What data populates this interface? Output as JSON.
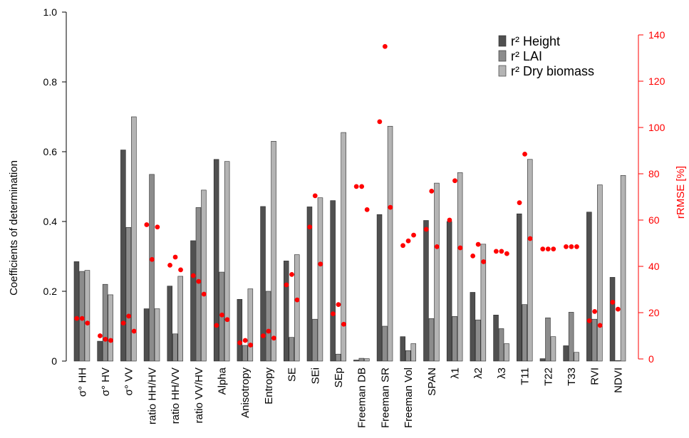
{
  "chart_data": {
    "type": "bar",
    "categories": [
      "σ° HH",
      "σ° HV",
      "σ° VV",
      "ratio HH/HV",
      "ratio HH/VV",
      "ratio VV/HV",
      "Alpha",
      "Anisotropy",
      "Entropy",
      "SE",
      "SEi",
      "SEp",
      "Freeman DB",
      "Freeman SR",
      "Freeman Vol",
      "SPAN",
      "λ1",
      "λ2",
      "λ3",
      "T11",
      "T22",
      "T33",
      "RVI",
      "NDVI"
    ],
    "series": [
      {
        "name": "r² Height",
        "color": "#505050",
        "values": [
          0.285,
          0.057,
          0.605,
          0.15,
          0.215,
          0.345,
          0.578,
          0.177,
          0.443,
          0.287,
          0.442,
          0.46,
          0.003,
          0.42,
          0.07,
          0.403,
          0.4,
          0.197,
          0.132,
          0.422,
          0.007,
          0.044,
          0.427,
          0.24
        ]
      },
      {
        "name": "r² LAI",
        "color": "#8c8c8c",
        "values": [
          0.257,
          0.22,
          0.383,
          0.535,
          0.078,
          0.44,
          0.255,
          0.045,
          0.2,
          0.068,
          0.12,
          0.02,
          0.008,
          0.1,
          0.03,
          0.122,
          0.128,
          0.118,
          0.093,
          0.162,
          0.124,
          0.14,
          0.12,
          0.0
        ]
      },
      {
        "name": "r² Dry biomass",
        "color": "#b4b4b4",
        "values": [
          0.26,
          0.19,
          0.7,
          0.15,
          0.243,
          0.49,
          0.572,
          0.207,
          0.63,
          0.305,
          0.468,
          0.655,
          0.007,
          0.673,
          0.05,
          0.51,
          0.54,
          0.335,
          0.05,
          0.578,
          0.07,
          0.025,
          0.505,
          0.532
        ]
      },
      {
        "name": "rRMSE",
        "axis": "right",
        "color": "#ff0000",
        "points": [
          [
            0,
            17.5
          ],
          [
            0,
            17.5
          ],
          [
            0,
            15.5
          ],
          [
            1,
            10
          ],
          [
            1,
            8.5
          ],
          [
            1,
            8
          ],
          [
            2,
            15.5
          ],
          [
            2,
            18.5
          ],
          [
            2,
            12
          ],
          [
            3,
            58
          ],
          [
            3,
            43
          ],
          [
            3,
            57
          ],
          [
            4,
            40.5
          ],
          [
            4,
            44
          ],
          [
            4,
            38.5
          ],
          [
            5,
            36
          ],
          [
            5,
            33.5
          ],
          [
            5,
            28
          ],
          [
            6,
            14.5
          ],
          [
            6,
            19
          ],
          [
            6,
            17
          ],
          [
            7,
            7
          ],
          [
            7,
            8
          ],
          [
            7,
            6
          ],
          [
            8,
            10
          ],
          [
            8,
            12
          ],
          [
            8,
            9
          ],
          [
            9,
            32
          ],
          [
            9,
            36.5
          ],
          [
            9,
            25.5
          ],
          [
            10,
            57
          ],
          [
            10,
            70.5
          ],
          [
            10,
            41
          ],
          [
            11,
            19.5
          ],
          [
            11,
            23.5
          ],
          [
            11,
            15
          ],
          [
            12,
            74.5
          ],
          [
            12,
            74.5
          ],
          [
            12,
            64.5
          ],
          [
            13,
            102.5
          ],
          [
            13,
            135
          ],
          [
            13,
            65.5
          ],
          [
            14,
            49
          ],
          [
            14,
            51
          ],
          [
            14,
            53.5
          ],
          [
            15,
            56
          ],
          [
            15,
            72.5
          ],
          [
            15,
            48.5
          ],
          [
            16,
            60
          ],
          [
            16,
            77
          ],
          [
            16,
            48
          ],
          [
            17,
            44.5
          ],
          [
            17,
            49.5
          ],
          [
            17,
            42
          ],
          [
            18,
            46.5
          ],
          [
            18,
            46.5
          ],
          [
            18,
            45.5
          ],
          [
            19,
            67.5
          ],
          [
            19,
            88.5
          ],
          [
            19,
            52
          ],
          [
            20,
            47.5
          ],
          [
            20,
            47.5
          ],
          [
            20,
            47.5
          ],
          [
            21,
            48.5
          ],
          [
            21,
            48.5
          ],
          [
            21,
            48.5
          ],
          [
            22,
            16.5
          ],
          [
            22,
            20.5
          ],
          [
            22,
            14.5
          ],
          [
            23,
            24.5
          ],
          [
            23,
            21.5
          ]
        ]
      }
    ],
    "ylabel": "Coefficients of determination",
    "y2label": "rRMSE [%]",
    "ylim": [
      0,
      1.0
    ],
    "yticks": [
      "0",
      "0.2",
      "0.4",
      "0.6",
      "0.8",
      "1.0"
    ],
    "y2lim": [
      0,
      150
    ],
    "y2ticks": [
      "0",
      "20",
      "40",
      "60",
      "80",
      "100",
      "120",
      "140"
    ],
    "grid": false,
    "legend": "top-right",
    "axis_color": "#000000",
    "right_axis_color": "#ff0000"
  }
}
